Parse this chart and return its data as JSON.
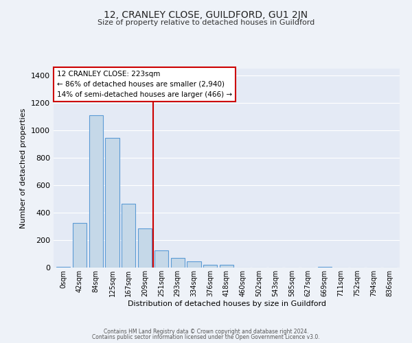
{
  "title": "12, CRANLEY CLOSE, GUILDFORD, GU1 2JN",
  "subtitle": "Size of property relative to detached houses in Guildford",
  "xlabel": "Distribution of detached houses by size in Guildford",
  "ylabel": "Number of detached properties",
  "bar_labels": [
    "0sqm",
    "42sqm",
    "84sqm",
    "125sqm",
    "167sqm",
    "209sqm",
    "251sqm",
    "293sqm",
    "334sqm",
    "376sqm",
    "418sqm",
    "460sqm",
    "502sqm",
    "543sqm",
    "585sqm",
    "627sqm",
    "669sqm",
    "711sqm",
    "752sqm",
    "794sqm",
    "836sqm"
  ],
  "bar_values": [
    5,
    325,
    1110,
    945,
    465,
    285,
    125,
    70,
    45,
    20,
    20,
    0,
    0,
    0,
    0,
    0,
    5,
    0,
    0,
    0,
    0
  ],
  "bar_color": "#c5d8e8",
  "bar_edge_color": "#5b9bd5",
  "bg_color": "#eef2f8",
  "plot_bg_color": "#e4eaf5",
  "grid_color": "#ffffff",
  "vline_x": 5.5,
  "vline_color": "#cc0000",
  "annotation_title": "12 CRANLEY CLOSE: 223sqm",
  "annotation_line1": "← 86% of detached houses are smaller (2,940)",
  "annotation_line2": "14% of semi-detached houses are larger (466) →",
  "annotation_box_color": "#ffffff",
  "annotation_box_edge": "#cc0000",
  "ylim": [
    0,
    1450
  ],
  "yticks": [
    0,
    200,
    400,
    600,
    800,
    1000,
    1200,
    1400
  ],
  "footer_line1": "Contains HM Land Registry data © Crown copyright and database right 2024.",
  "footer_line2": "Contains public sector information licensed under the Open Government Licence v3.0."
}
